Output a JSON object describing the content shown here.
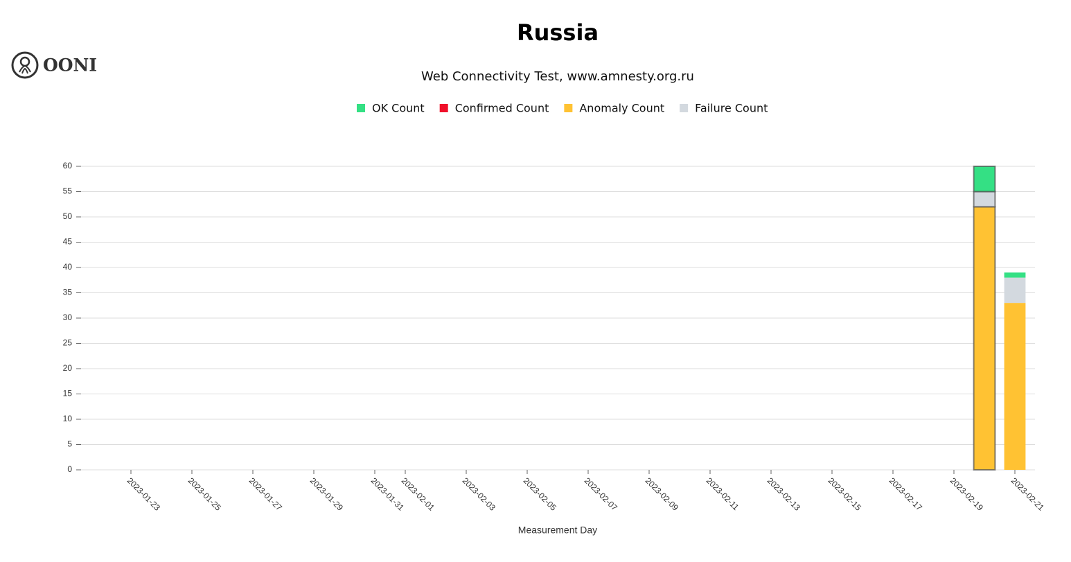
{
  "logo": "OONI",
  "chart_data": {
    "type": "stacked-bar",
    "title": "Russia",
    "subtitle": "Web Connectivity Test, www.amnesty.org.ru",
    "x_label": "Measurement Day",
    "x": [
      "2023-02-20",
      "2023-02-21"
    ],
    "series": [
      {
        "name": "OK Count",
        "color": "#34e084",
        "values": [
          5,
          1
        ]
      },
      {
        "name": "Confirmed Count",
        "color": "#f0102a",
        "values": [
          0,
          0
        ]
      },
      {
        "name": "Anomaly Count",
        "color": "#ffc233",
        "values": [
          52,
          33
        ]
      },
      {
        "name": "Failure Count",
        "color": "#d3d9df",
        "values": [
          3,
          5
        ]
      }
    ],
    "xlim": [
      "2023-01-21",
      "2023-02-22"
    ],
    "xticks": [
      "2023-01-23",
      "2023-01-25",
      "2023-01-27",
      "2023-01-29",
      "2023-01-31",
      "2023-02-01",
      "2023-02-03",
      "2023-02-05",
      "2023-02-07",
      "2023-02-09",
      "2023-02-11",
      "2023-02-13",
      "2023-02-15",
      "2023-02-17",
      "2023-02-19",
      "2023-02-21"
    ],
    "ylim": [
      0,
      60
    ],
    "yticks": [
      0,
      5,
      10,
      15,
      20,
      25,
      30,
      35,
      40,
      45,
      50,
      55,
      60
    ],
    "grid": true,
    "legend": "top"
  }
}
